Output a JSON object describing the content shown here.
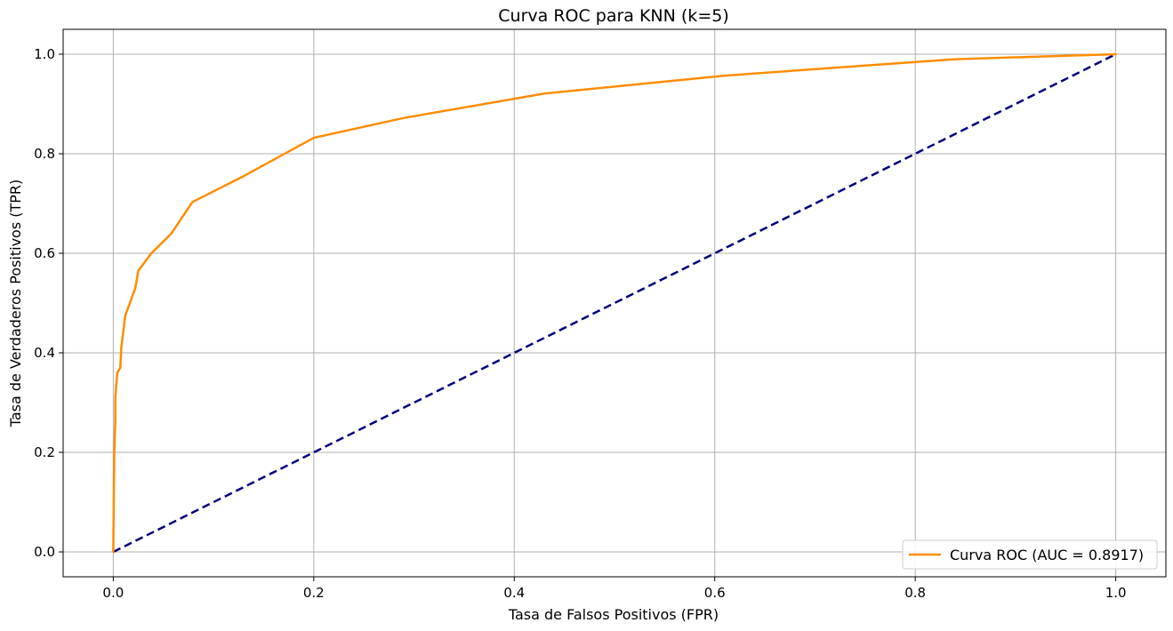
{
  "chart_data": {
    "type": "line",
    "title": "Curva ROC para KNN (k=5)",
    "xlabel": "Tasa de Falsos Positivos (FPR)",
    "ylabel": "Tasa de Verdaderos Positivos (TPR)",
    "xlim": [
      -0.05,
      1.05
    ],
    "ylim": [
      -0.05,
      1.05
    ],
    "xticks": [
      "0.0",
      "0.2",
      "0.4",
      "0.6",
      "0.8",
      "1.0"
    ],
    "yticks": [
      "0.0",
      "0.2",
      "0.4",
      "0.6",
      "0.8",
      "1.0"
    ],
    "grid": true,
    "legend_position": "bottom-right",
    "series": [
      {
        "name": "Curva ROC (AUC = 0.8917)",
        "color": "#ff8c00",
        "style": "solid",
        "x": [
          0.0,
          0.001,
          0.002,
          0.002,
          0.004,
          0.007,
          0.008,
          0.012,
          0.022,
          0.025,
          0.038,
          0.058,
          0.079,
          0.13,
          0.2,
          0.29,
          0.43,
          0.61,
          0.84,
          1.0
        ],
        "y": [
          0.0,
          0.2,
          0.26,
          0.31,
          0.36,
          0.37,
          0.41,
          0.475,
          0.53,
          0.565,
          0.6,
          0.64,
          0.703,
          0.755,
          0.832,
          0.872,
          0.921,
          0.957,
          0.99,
          1.0
        ]
      },
      {
        "name": "",
        "color": "#000080",
        "style": "dashed",
        "x": [
          0.0,
          1.0
        ],
        "y": [
          0.0,
          1.0
        ]
      }
    ]
  }
}
